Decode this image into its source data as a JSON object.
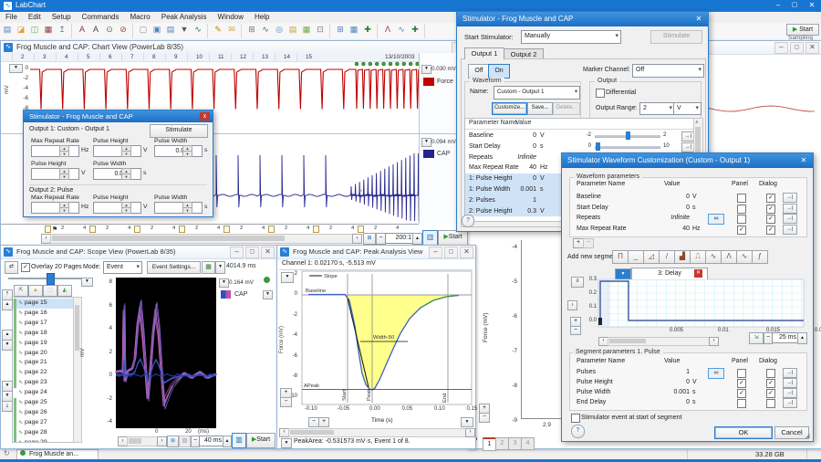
{
  "app": {
    "title": "LabChart",
    "menu": [
      "File",
      "Edit",
      "Setup",
      "Commands",
      "Macro",
      "Peak Analysis",
      "Window",
      "Help"
    ],
    "toolbar": {
      "groups": [
        {
          "label": "File",
          "icons": [
            {
              "n": "new-document-icon",
              "g": "▤",
              "c": "#4f81bd"
            },
            {
              "n": "open-file-icon",
              "g": "◪",
              "c": "#d9a441"
            },
            {
              "n": "save-icon",
              "g": "◫",
              "c": "#6aa84f"
            },
            {
              "n": "print-icon",
              "g": "▦",
              "c": "#8b3a3a"
            },
            {
              "n": "export-icon",
              "g": "↥",
              "c": "#777777"
            }
          ]
        },
        {
          "label": "Commands",
          "icons": [
            {
              "n": "find-icon",
              "g": "A",
              "c": "#8b3a3a"
            },
            {
              "n": "find-next-icon",
              "g": "A",
              "c": "#444444"
            },
            {
              "n": "insert-marker-icon",
              "g": "⊙",
              "c": "#2e7d32"
            },
            {
              "n": "clear-marker-icon",
              "g": "⊘",
              "c": "#b33a3a"
            }
          ]
        },
        {
          "label": "Data Pad",
          "icons": [
            {
              "n": "datapad-view-icon",
              "g": "▢",
              "c": "#888888"
            },
            {
              "n": "datapad-add-icon",
              "g": "▣",
              "c": "#4f81bd"
            },
            {
              "n": "datapad-select-icon",
              "g": "▤",
              "c": "#4f81bd"
            },
            {
              "n": "datapad-options-icon",
              "g": "▼",
              "c": "#555555"
            },
            {
              "n": "datapad-chart-icon",
              "g": "∿",
              "c": "#2e7d32"
            }
          ]
        },
        {
          "label": "Comments",
          "icons": [
            {
              "n": "add-comment-icon",
              "g": "✎",
              "c": "#b8860b"
            },
            {
              "n": "comment-list-icon",
              "g": "✉",
              "c": "#d9a441"
            }
          ]
        },
        {
          "label": "Window",
          "icons": [
            {
              "n": "tile-windows-icon",
              "g": "⊞",
              "c": "#777777"
            },
            {
              "n": "chart-window-icon",
              "g": "∿",
              "c": "#2e7d32"
            },
            {
              "n": "zoom-window-icon",
              "g": "◎",
              "c": "#4f81bd"
            },
            {
              "n": "notebook-icon",
              "g": "▤",
              "c": "#caa23a"
            },
            {
              "n": "picture-icon",
              "g": "▦",
              "c": "#6aa84f"
            },
            {
              "n": "copy-window-icon",
              "g": "⊡",
              "c": "#777777"
            }
          ]
        },
        {
          "label": "Layout",
          "icons": [
            {
              "n": "layout-grid-icon",
              "g": "⊞",
              "c": "#4f81bd"
            },
            {
              "n": "layout-tile-icon",
              "g": "▦",
              "c": "#4f81bd"
            },
            {
              "n": "new-layout-icon",
              "g": "✚",
              "c": "#2e7d32"
            }
          ]
        },
        {
          "label": "Peak Analysis",
          "icons": [
            {
              "n": "peak-marker-icon",
              "g": "Λ",
              "c": "#8b3a3a"
            },
            {
              "n": "peak-chart-icon",
              "g": "∿",
              "c": "#4f81bd"
            },
            {
              "n": "peak-window-icon",
              "g": "✚",
              "c": "#2e7d32"
            }
          ]
        }
      ],
      "start_button": "Start",
      "sampling_label": "Sampling"
    },
    "statusbar": {
      "document_tab": "Frog Muscle an...",
      "disk_space": "33.28 GB"
    }
  },
  "chart": {
    "title": "Frog Muscle and CAP: Chart View (PowerLab 8/35)",
    "blocks": [
      "2",
      "3",
      "4",
      "5",
      "6",
      "7",
      "8",
      "9",
      "10",
      "11",
      "12",
      "13",
      "14",
      "15"
    ],
    "date": "13/10/2003",
    "timebase": "2.74 s",
    "force_scale": "0.030 mV",
    "force_name": "Force",
    "force_color": "#c00000",
    "force_yticks": [
      "0",
      "-2",
      "-4",
      "-6",
      "-8"
    ],
    "ylabel": "mV",
    "cap_scale": "0.094 mV",
    "cap_name": "CAP",
    "cap_color": "#23238e",
    "xaxis_labels": [
      "2",
      "4"
    ],
    "zoom_ratio": "200:1",
    "start": "Start"
  },
  "zoomwin": {
    "yticks": [
      "-4",
      "-5",
      "-6",
      "-7",
      "-8",
      "-9"
    ],
    "ylabel": "Force (mV)",
    "xtick": "2.9",
    "pages": [
      "1",
      "2",
      "3",
      "4"
    ]
  },
  "scope": {
    "title": "Frog Muscle and CAP: Scope View (PowerLab 8/35)",
    "overlay_label": "Overlay 20 Pages",
    "mode_label": "Mode:",
    "mode_value": "Event",
    "event_settings": "Event Settings...",
    "time_value": "4014.9 ms",
    "pages": [
      "page 15",
      "page 16",
      "page 17",
      "page 18",
      "page 19",
      "page 20",
      "page 21",
      "page 22",
      "page 23",
      "page 24",
      "page 25",
      "page 26",
      "page 27",
      "page 28",
      "page 29"
    ],
    "selected_page": "page 15",
    "yticks": [
      "8",
      "6",
      "4",
      "2",
      "0",
      "-2",
      "-4"
    ],
    "ylabel": "mV",
    "xtick0": "0",
    "xtick1": "20",
    "xunit": "(ms)",
    "scale": "0.164 mV",
    "channel": "CAP",
    "timebase": "40 ms",
    "start": "Start"
  },
  "peak": {
    "title": "Frog Muscle and CAP: Peak Analysis View",
    "info": "Channel 1: 0.02170 s, -5.513 mV",
    "legend": "Slope",
    "baseline_label": "Baseline",
    "width_label": "Width-50",
    "apeak_label": "APeak",
    "cursors": [
      "Start",
      "Peak",
      "End"
    ],
    "yticks": [
      "2",
      "0",
      "-2",
      "-4",
      "-6",
      "-8",
      "-10"
    ],
    "ylabel": "Force (mV)",
    "xticks": [
      "-0.10",
      "-0.05",
      "0.00",
      "0.05",
      "0.10",
      "0.15"
    ],
    "xlabel": "Time (s)",
    "status": "PeakArea: -0.531573 mV·s, Event 1 of 8."
  },
  "stim_small": {
    "title": "Stimulator - Frog Muscle and CAP",
    "output1_header": "Output 1: Custom - Output 1",
    "stimulate": "Stimulate",
    "row1": [
      {
        "label": "Max Repeat Rate",
        "value": "40",
        "unit": "Hz"
      },
      {
        "label": "Pulse Height",
        "value": "0",
        "unit": "V"
      },
      {
        "label": "Pulse Width",
        "value": "0.001",
        "unit": "s"
      }
    ],
    "row2": [
      {
        "label": "Pulse Height",
        "value": "0.3",
        "unit": "V"
      },
      {
        "label": "Pulse Width",
        "value": "0.002",
        "unit": "s"
      }
    ],
    "output2_header": "Output 2: Pulse",
    "row3": [
      {
        "label": "Max Repeat Rate",
        "value": "1",
        "unit": "Hz"
      },
      {
        "label": "Pulse Height",
        "value": "5",
        "unit": "V"
      },
      {
        "label": "Pulse Width",
        "value": "0.1",
        "unit": "s"
      }
    ]
  },
  "stim": {
    "title": "Stimulator - Frog Muscle and CAP",
    "start_label": "Start Stimulator:",
    "start_value": "Manually",
    "stimulate": "Stimulate",
    "tabs": [
      "Output 1",
      "Output 2"
    ],
    "off": "Off",
    "on": "On",
    "marker_label": "Marker Channel:",
    "marker_value": "Off",
    "waveform_group": "Waveform",
    "name_label": "Name:",
    "name_value": "Custom - Output 1",
    "customize": "Customize...",
    "save": "Save...",
    "delete": "Delete...",
    "output_group": "Output",
    "differential": "Differential",
    "range_label": "Output Range:",
    "range_value": "2",
    "range_unit": "V",
    "col_name": "Parameter Name",
    "col_value": "Value",
    "params": [
      {
        "name": "Baseline",
        "value": "0",
        "unit": "V",
        "min": "-2",
        "max": "2",
        "thumb": 0.5
      },
      {
        "name": "Start Delay",
        "value": "0",
        "unit": "s",
        "min": "0",
        "max": "10",
        "thumb": 0.02
      },
      {
        "name": "Repeats",
        "value": "Infinite",
        "unit": "",
        "min": "1",
        "max": "1000",
        "thumb": 0.02,
        "go": true
      },
      {
        "name": "Max Repeat Rate",
        "value": "40",
        "unit": "Hz"
      },
      {
        "name": "1: Pulse Height",
        "value": "0",
        "unit": "V",
        "hl": true
      },
      {
        "name": "1: Pulse Width",
        "value": "0.001",
        "unit": "s",
        "hl": true
      },
      {
        "name": "2: Pulses",
        "value": "1",
        "unit": "",
        "hl": true
      },
      {
        "name": "2: Pulse Height",
        "value": "0.3",
        "unit": "V",
        "hl": true
      }
    ]
  },
  "wave": {
    "title": "Stimulator Waveform Customization (Custom - Output 1)",
    "group1": "Waveform parameters",
    "col_name": "Parameter Name",
    "col_value": "Value",
    "col_panel": "Panel",
    "col_dialog": "Dialog",
    "params": [
      {
        "name": "Baseline",
        "value": "0",
        "unit": "V",
        "panel": false,
        "dialog": true
      },
      {
        "name": "Start Delay",
        "value": "0",
        "unit": "s",
        "panel": false,
        "dialog": true
      },
      {
        "name": "Repeats",
        "value": "Infinite",
        "unit": "",
        "panel": false,
        "dialog": true,
        "go": true
      },
      {
        "name": "Max Repeat Rate",
        "value": "40",
        "unit": "Hz",
        "panel": true,
        "dialog": true
      }
    ],
    "add_segment_label": "Add new segment:",
    "segment_glyphs": [
      "Π",
      "_",
      "◿",
      "/",
      "▟",
      "⎍",
      "∿",
      "Λ",
      "∿",
      "ƒ"
    ],
    "segment_tab": "3: Delay",
    "preview_yticks": [
      "0.3",
      "0.2",
      "0.1",
      "0.0"
    ],
    "preview_xticks": [
      "0.005",
      "0.01",
      "0.015",
      "0.02"
    ],
    "preview_timebase": "25 ms",
    "group2": "Segment parameters 1. Pulse",
    "segment_params": [
      {
        "name": "Pulses",
        "value": "1",
        "unit": "",
        "panel": false,
        "dialog": false,
        "go": true
      },
      {
        "name": "Pulse Height",
        "value": "0",
        "unit": "V",
        "panel": true,
        "dialog": true
      },
      {
        "name": "Pulse Width",
        "value": "0.001",
        "unit": "s",
        "panel": true,
        "dialog": true
      },
      {
        "name": "End Delay",
        "value": "0",
        "unit": "s",
        "panel": false,
        "dialog": false
      }
    ],
    "event_checkbox": "Stimulator event at start of segment",
    "ok": "OK",
    "cancel": "Cancel"
  }
}
